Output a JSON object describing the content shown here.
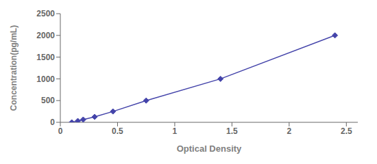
{
  "chart_data": {
    "type": "line",
    "x": [
      0.1,
      0.153,
      0.2,
      0.3,
      0.46,
      0.75,
      1.4,
      2.4
    ],
    "values": [
      0,
      31,
      63,
      125,
      250,
      500,
      1000,
      2000
    ],
    "xlabel": "Optical Density",
    "ylabel": "Concentration(pg/mL)",
    "xlim": [
      0,
      2.6
    ],
    "ylim": [
      0,
      2500
    ],
    "xticks": [
      0,
      0.5,
      1,
      1.5,
      2,
      2.5
    ],
    "yticks": [
      0,
      500,
      1000,
      1500,
      2000,
      2500
    ],
    "color": "#4444AA",
    "marker": "diamond",
    "grid": false
  }
}
